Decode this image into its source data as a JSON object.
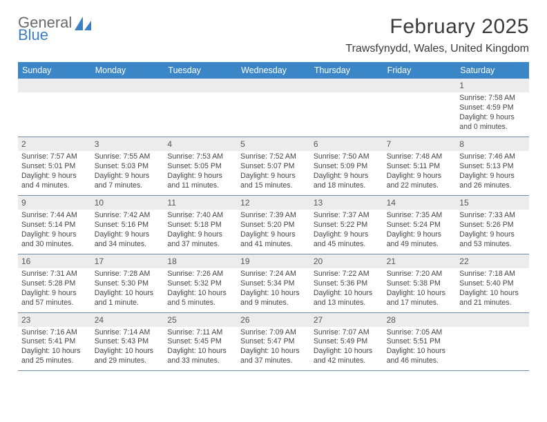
{
  "logo": {
    "text_top": "General",
    "text_bottom": "Blue",
    "shape_color": "#3b7fc4",
    "text_gray": "#6a6a6a"
  },
  "title": "February 2025",
  "location": "Trawsfynydd, Wales, United Kingdom",
  "colors": {
    "header_bg": "#3b86c7",
    "header_fg": "#ffffff",
    "day_bg": "#ececec",
    "divider": "#6a8aa6",
    "body_text": "#444444"
  },
  "day_names": [
    "Sunday",
    "Monday",
    "Tuesday",
    "Wednesday",
    "Thursday",
    "Friday",
    "Saturday"
  ],
  "weeks": [
    [
      {
        "n": "",
        "sr": "",
        "ss": "",
        "dl": ""
      },
      {
        "n": "",
        "sr": "",
        "ss": "",
        "dl": ""
      },
      {
        "n": "",
        "sr": "",
        "ss": "",
        "dl": ""
      },
      {
        "n": "",
        "sr": "",
        "ss": "",
        "dl": ""
      },
      {
        "n": "",
        "sr": "",
        "ss": "",
        "dl": ""
      },
      {
        "n": "",
        "sr": "",
        "ss": "",
        "dl": ""
      },
      {
        "n": "1",
        "sr": "Sunrise: 7:58 AM",
        "ss": "Sunset: 4:59 PM",
        "dl": "Daylight: 9 hours and 0 minutes."
      }
    ],
    [
      {
        "n": "2",
        "sr": "Sunrise: 7:57 AM",
        "ss": "Sunset: 5:01 PM",
        "dl": "Daylight: 9 hours and 4 minutes."
      },
      {
        "n": "3",
        "sr": "Sunrise: 7:55 AM",
        "ss": "Sunset: 5:03 PM",
        "dl": "Daylight: 9 hours and 7 minutes."
      },
      {
        "n": "4",
        "sr": "Sunrise: 7:53 AM",
        "ss": "Sunset: 5:05 PM",
        "dl": "Daylight: 9 hours and 11 minutes."
      },
      {
        "n": "5",
        "sr": "Sunrise: 7:52 AM",
        "ss": "Sunset: 5:07 PM",
        "dl": "Daylight: 9 hours and 15 minutes."
      },
      {
        "n": "6",
        "sr": "Sunrise: 7:50 AM",
        "ss": "Sunset: 5:09 PM",
        "dl": "Daylight: 9 hours and 18 minutes."
      },
      {
        "n": "7",
        "sr": "Sunrise: 7:48 AM",
        "ss": "Sunset: 5:11 PM",
        "dl": "Daylight: 9 hours and 22 minutes."
      },
      {
        "n": "8",
        "sr": "Sunrise: 7:46 AM",
        "ss": "Sunset: 5:13 PM",
        "dl": "Daylight: 9 hours and 26 minutes."
      }
    ],
    [
      {
        "n": "9",
        "sr": "Sunrise: 7:44 AM",
        "ss": "Sunset: 5:14 PM",
        "dl": "Daylight: 9 hours and 30 minutes."
      },
      {
        "n": "10",
        "sr": "Sunrise: 7:42 AM",
        "ss": "Sunset: 5:16 PM",
        "dl": "Daylight: 9 hours and 34 minutes."
      },
      {
        "n": "11",
        "sr": "Sunrise: 7:40 AM",
        "ss": "Sunset: 5:18 PM",
        "dl": "Daylight: 9 hours and 37 minutes."
      },
      {
        "n": "12",
        "sr": "Sunrise: 7:39 AM",
        "ss": "Sunset: 5:20 PM",
        "dl": "Daylight: 9 hours and 41 minutes."
      },
      {
        "n": "13",
        "sr": "Sunrise: 7:37 AM",
        "ss": "Sunset: 5:22 PM",
        "dl": "Daylight: 9 hours and 45 minutes."
      },
      {
        "n": "14",
        "sr": "Sunrise: 7:35 AM",
        "ss": "Sunset: 5:24 PM",
        "dl": "Daylight: 9 hours and 49 minutes."
      },
      {
        "n": "15",
        "sr": "Sunrise: 7:33 AM",
        "ss": "Sunset: 5:26 PM",
        "dl": "Daylight: 9 hours and 53 minutes."
      }
    ],
    [
      {
        "n": "16",
        "sr": "Sunrise: 7:31 AM",
        "ss": "Sunset: 5:28 PM",
        "dl": "Daylight: 9 hours and 57 minutes."
      },
      {
        "n": "17",
        "sr": "Sunrise: 7:28 AM",
        "ss": "Sunset: 5:30 PM",
        "dl": "Daylight: 10 hours and 1 minute."
      },
      {
        "n": "18",
        "sr": "Sunrise: 7:26 AM",
        "ss": "Sunset: 5:32 PM",
        "dl": "Daylight: 10 hours and 5 minutes."
      },
      {
        "n": "19",
        "sr": "Sunrise: 7:24 AM",
        "ss": "Sunset: 5:34 PM",
        "dl": "Daylight: 10 hours and 9 minutes."
      },
      {
        "n": "20",
        "sr": "Sunrise: 7:22 AM",
        "ss": "Sunset: 5:36 PM",
        "dl": "Daylight: 10 hours and 13 minutes."
      },
      {
        "n": "21",
        "sr": "Sunrise: 7:20 AM",
        "ss": "Sunset: 5:38 PM",
        "dl": "Daylight: 10 hours and 17 minutes."
      },
      {
        "n": "22",
        "sr": "Sunrise: 7:18 AM",
        "ss": "Sunset: 5:40 PM",
        "dl": "Daylight: 10 hours and 21 minutes."
      }
    ],
    [
      {
        "n": "23",
        "sr": "Sunrise: 7:16 AM",
        "ss": "Sunset: 5:41 PM",
        "dl": "Daylight: 10 hours and 25 minutes."
      },
      {
        "n": "24",
        "sr": "Sunrise: 7:14 AM",
        "ss": "Sunset: 5:43 PM",
        "dl": "Daylight: 10 hours and 29 minutes."
      },
      {
        "n": "25",
        "sr": "Sunrise: 7:11 AM",
        "ss": "Sunset: 5:45 PM",
        "dl": "Daylight: 10 hours and 33 minutes."
      },
      {
        "n": "26",
        "sr": "Sunrise: 7:09 AM",
        "ss": "Sunset: 5:47 PM",
        "dl": "Daylight: 10 hours and 37 minutes."
      },
      {
        "n": "27",
        "sr": "Sunrise: 7:07 AM",
        "ss": "Sunset: 5:49 PM",
        "dl": "Daylight: 10 hours and 42 minutes."
      },
      {
        "n": "28",
        "sr": "Sunrise: 7:05 AM",
        "ss": "Sunset: 5:51 PM",
        "dl": "Daylight: 10 hours and 46 minutes."
      },
      {
        "n": "",
        "sr": "",
        "ss": "",
        "dl": ""
      }
    ]
  ]
}
